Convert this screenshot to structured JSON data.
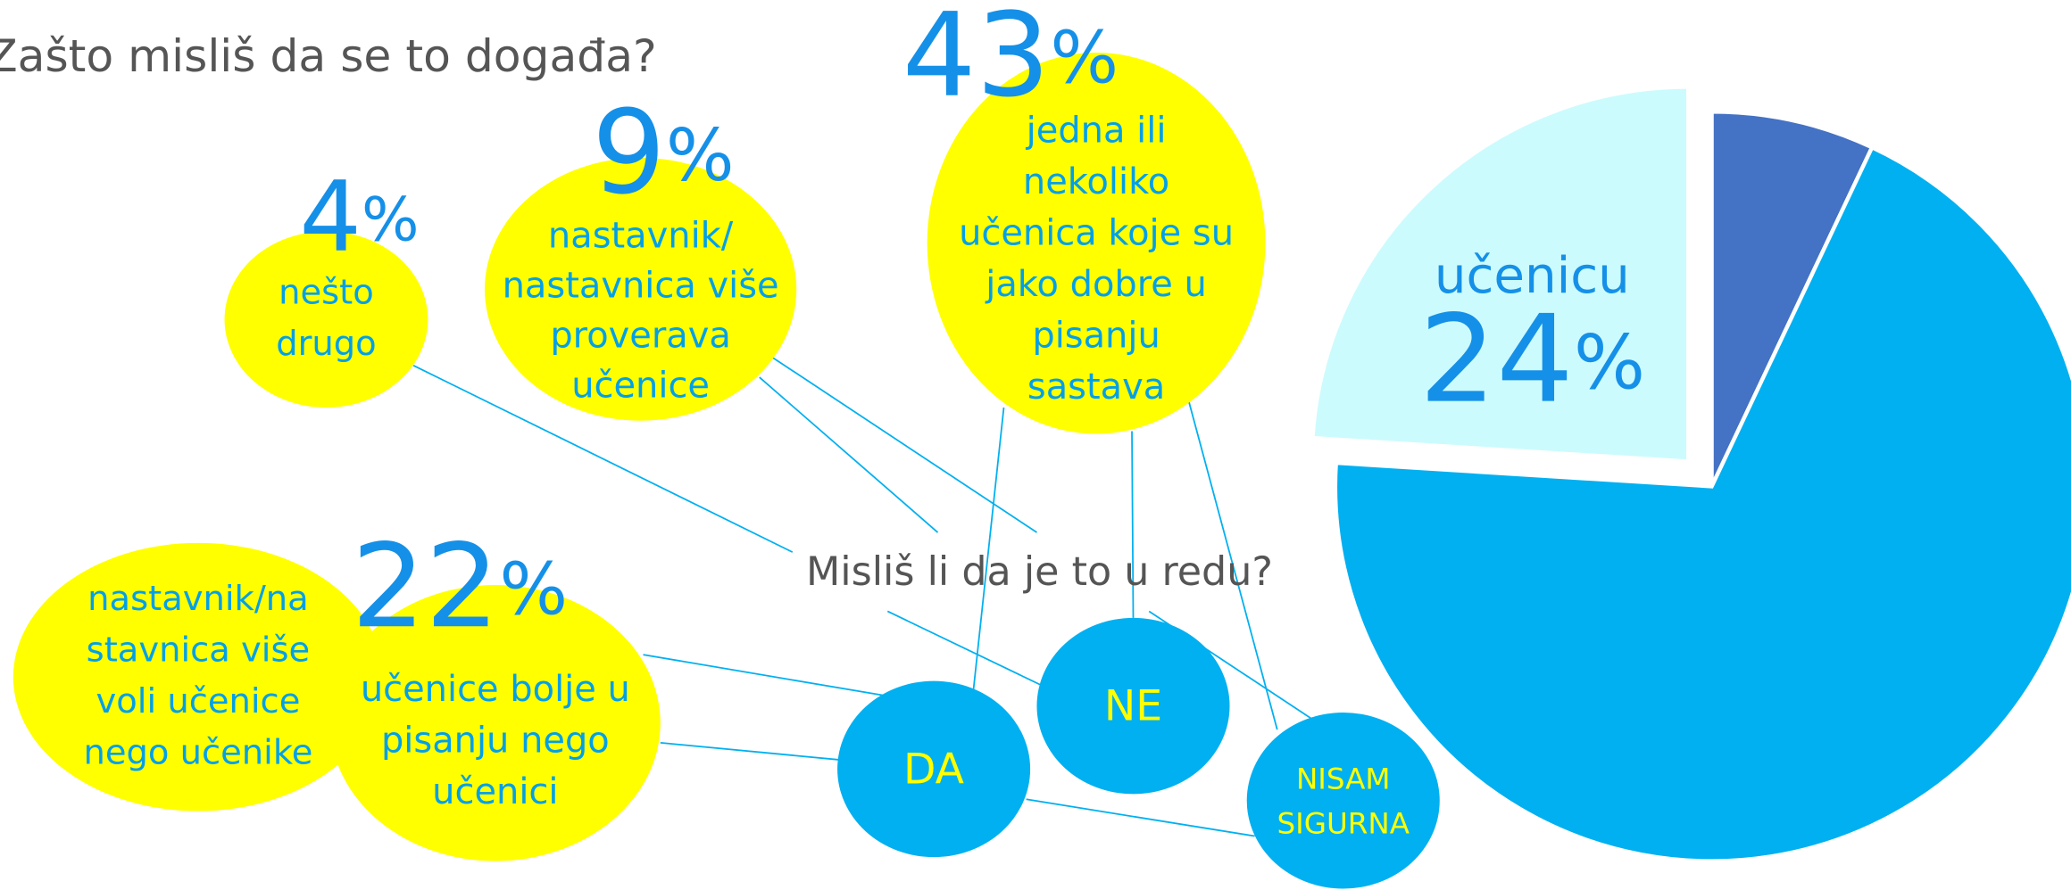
{
  "title": "Zašto misliš da se to događa?",
  "percent_sign": "%",
  "bubbles": [
    {
      "lines": [
        "nešto",
        "drugo"
      ],
      "percent": 4
    },
    {
      "lines": [
        "nastavnik/",
        "nastavnica više",
        "proverava",
        "učenice"
      ],
      "percent": 9
    },
    {
      "lines": [
        "jedna ili",
        "nekoliko",
        "učenica koje su",
        "jako dobre u",
        "pisanju",
        "sastava"
      ],
      "percent": 43
    },
    {
      "lines": [
        "nastavnik/na",
        "stavnica više",
        "voli učenice",
        "nego učenike"
      ]
    },
    {
      "lines": [
        "učenice bolje u",
        "pisanju nego",
        "učenici"
      ],
      "percent": 22
    }
  ],
  "question": "Misliš li da je to u redu?",
  "answers": [
    {
      "lines": [
        "DA"
      ]
    },
    {
      "lines": [
        "NE"
      ]
    },
    {
      "lines": [
        "NISAM",
        "SIGURNA"
      ]
    }
  ],
  "pie": {
    "slices": [
      {
        "value": 7,
        "color": "#4472c4"
      },
      {
        "value": 69,
        "color": "#00b0f0"
      },
      {
        "value": 24,
        "color": "#ccfbfd",
        "label": "učenicu"
      }
    ]
  }
}
